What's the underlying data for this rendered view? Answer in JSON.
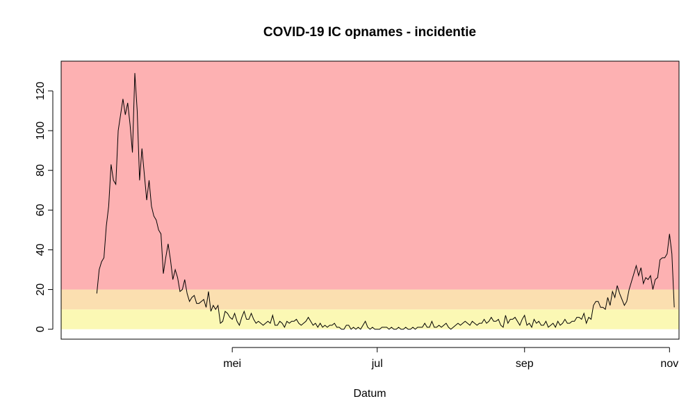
{
  "chart_data": {
    "type": "line",
    "title": "COVID-19 IC opnames - incidentie",
    "xlabel": "Datum",
    "ylabel": "",
    "x_start": "2020-03-05",
    "xlim": [
      "2020-02-19",
      "2020-11-05"
    ],
    "ylim": [
      -5,
      135
    ],
    "x_ticks": [
      {
        "date": "2020-05-01",
        "label": "mei"
      },
      {
        "date": "2020-07-01",
        "label": "jul"
      },
      {
        "date": "2020-09-01",
        "label": "sep"
      },
      {
        "date": "2020-11-01",
        "label": "nov"
      }
    ],
    "y_ticks": [
      0,
      20,
      40,
      60,
      80,
      100,
      120
    ],
    "bands": [
      {
        "from": 0,
        "to": 10,
        "color": "#fbf8b4"
      },
      {
        "from": 10,
        "to": 20,
        "color": "#fbdfb0"
      },
      {
        "from": 20,
        "to": 135,
        "color": "#fdb1b2"
      }
    ],
    "line_color": "#000000",
    "values": [
      18,
      30,
      34,
      36,
      52,
      62,
      83,
      75,
      73,
      100,
      108,
      116,
      108,
      114,
      103,
      89,
      129,
      110,
      75,
      91,
      78,
      65,
      75,
      62,
      57,
      55,
      50,
      48,
      28,
      36,
      43,
      35,
      25,
      30,
      26,
      19,
      20,
      25,
      18,
      14,
      16,
      17,
      13,
      13,
      14,
      15,
      11,
      19,
      9,
      12,
      10,
      12,
      3,
      4,
      9,
      8,
      6,
      5,
      8,
      4,
      2,
      6,
      9,
      5,
      5,
      8,
      5,
      3,
      4,
      3,
      2,
      3,
      4,
      3,
      7,
      2,
      2,
      4,
      3,
      1,
      4,
      3,
      4,
      4,
      5,
      3,
      2,
      3,
      4,
      6,
      4,
      2,
      3,
      1,
      3,
      1,
      2,
      1,
      2,
      2,
      3,
      1,
      1,
      0,
      0,
      2,
      2,
      0,
      1,
      0,
      1,
      0,
      2,
      4,
      1,
      0,
      1,
      0,
      0,
      0,
      1,
      1,
      1,
      0,
      1,
      0,
      0,
      1,
      0,
      0,
      1,
      0,
      0,
      1,
      0,
      1,
      1,
      1,
      3,
      1,
      1,
      4,
      1,
      1,
      2,
      1,
      2,
      3,
      1,
      0,
      1,
      2,
      3,
      2,
      3,
      4,
      3,
      2,
      4,
      3,
      2,
      3,
      3,
      5,
      3,
      4,
      6,
      4,
      4,
      5,
      2,
      1,
      7,
      3,
      5,
      5,
      6,
      4,
      2,
      5,
      7,
      2,
      3,
      1,
      5,
      3,
      4,
      2,
      2,
      4,
      1,
      2,
      3,
      1,
      4,
      2,
      3,
      5,
      3,
      3,
      4,
      4,
      6,
      6,
      5,
      8,
      3,
      6,
      5,
      12,
      14,
      14,
      11,
      11,
      10,
      16,
      12,
      19,
      16,
      22,
      18,
      15,
      12,
      14,
      20,
      24,
      28,
      32,
      27,
      31,
      23,
      26,
      25,
      27,
      20,
      25,
      26,
      35,
      36,
      36,
      38,
      48,
      38,
      11
    ]
  }
}
